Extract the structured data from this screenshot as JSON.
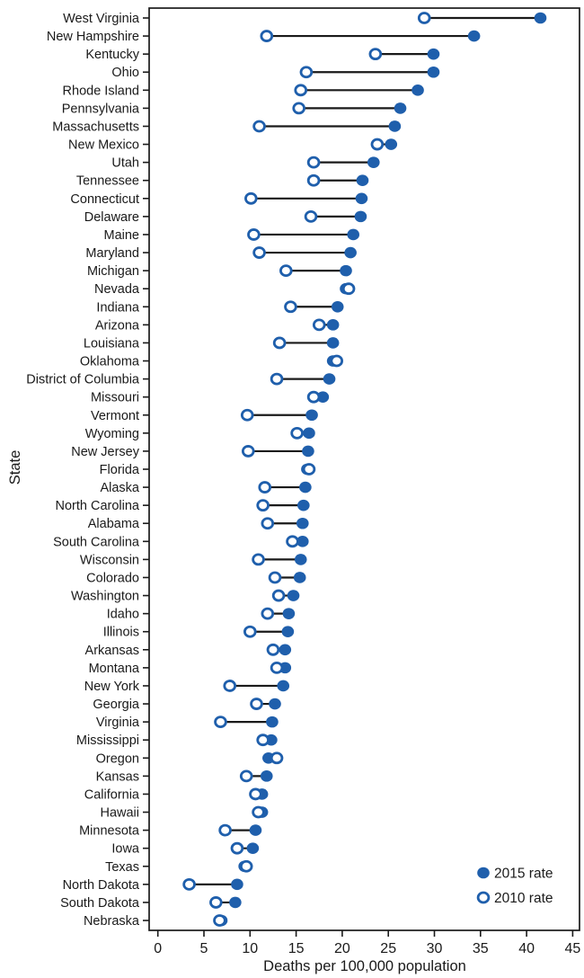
{
  "figure": {
    "title": "",
    "colors": {
      "accent_blue": "#1F5FAC",
      "connector_black": "#1a1a1a",
      "text_black": "#1a1a1a",
      "background": "#ffffff"
    }
  },
  "chart_data": {
    "type": "scatter",
    "subtype": "dumbbell",
    "title": "",
    "xlabel": "Deaths per 100,000 population",
    "ylabel": "State",
    "xlim": [
      0,
      45
    ],
    "xticks": [
      0,
      5,
      10,
      15,
      20,
      25,
      30,
      35,
      40,
      45
    ],
    "grid": false,
    "legend_position": "inside-bottom-right",
    "categories": [
      "West Virginia",
      "New Hampshire",
      "Kentucky",
      "Ohio",
      "Rhode Island",
      "Pennsylvania",
      "Massachusetts",
      "New Mexico",
      "Utah",
      "Tennessee",
      "Connecticut",
      "Delaware",
      "Maine",
      "Maryland",
      "Michigan",
      "Nevada",
      "Indiana",
      "Arizona",
      "Louisiana",
      "Oklahoma",
      "District of Columbia",
      "Missouri",
      "Vermont",
      "Wyoming",
      "New Jersey",
      "Florida",
      "Alaska",
      "North Carolina",
      "Alabama",
      "South Carolina",
      "Wisconsin",
      "Colorado",
      "Washington",
      "Idaho",
      "Illinois",
      "Arkansas",
      "Montana",
      "New York",
      "Georgia",
      "Virginia",
      "Mississippi",
      "Oregon",
      "Kansas",
      "California",
      "Hawaii",
      "Minnesota",
      "Iowa",
      "Texas",
      "North Dakota",
      "South Dakota",
      "Nebraska"
    ],
    "series": [
      {
        "name": "2015 rate",
        "marker": "filled-circle",
        "values": [
          41.5,
          34.3,
          29.9,
          29.9,
          28.2,
          26.3,
          25.7,
          25.3,
          23.4,
          22.2,
          22.1,
          22.0,
          21.2,
          20.9,
          20.4,
          20.4,
          19.5,
          19.0,
          19.0,
          19.0,
          18.6,
          17.9,
          16.7,
          16.4,
          16.3,
          16.2,
          16.0,
          15.8,
          15.7,
          15.7,
          15.5,
          15.4,
          14.7,
          14.2,
          14.1,
          13.8,
          13.8,
          13.6,
          12.7,
          12.4,
          12.3,
          12.0,
          11.8,
          11.3,
          11.3,
          10.6,
          10.3,
          9.4,
          8.6,
          8.4,
          6.9
        ]
      },
      {
        "name": "2010 rate",
        "marker": "open-circle",
        "values": [
          28.9,
          11.8,
          23.6,
          16.1,
          15.5,
          15.3,
          11.0,
          23.8,
          16.9,
          16.9,
          10.1,
          16.6,
          10.4,
          11.0,
          13.9,
          20.7,
          14.4,
          17.5,
          13.2,
          19.4,
          12.9,
          16.9,
          9.7,
          15.1,
          9.8,
          16.4,
          11.6,
          11.4,
          11.9,
          14.6,
          10.9,
          12.7,
          13.1,
          11.9,
          10.0,
          12.5,
          12.9,
          7.8,
          10.7,
          6.8,
          11.4,
          12.9,
          9.6,
          10.6,
          10.9,
          7.3,
          8.6,
          9.6,
          3.4,
          6.3,
          6.7
        ]
      }
    ]
  }
}
